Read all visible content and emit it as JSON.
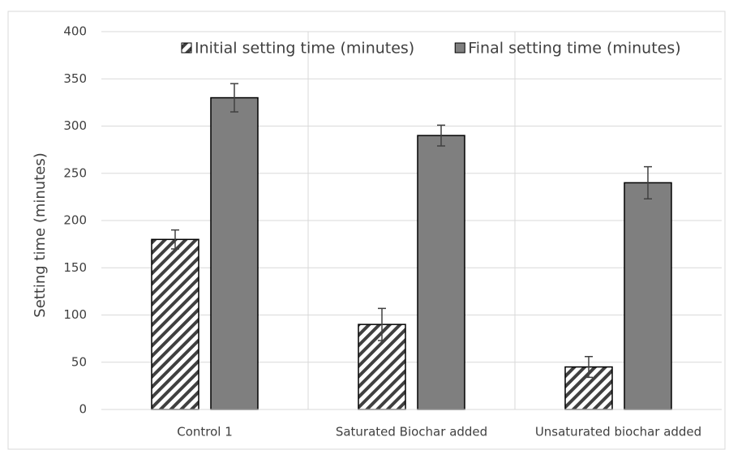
{
  "chart_data": {
    "type": "bar",
    "y_label": "Setting time (minutes)",
    "categories": [
      "Control 1",
      "Saturated Biochar added",
      "Unsaturated biochar added"
    ],
    "series": [
      {
        "name": "Initial setting time (minutes)",
        "color": "#404040",
        "pattern": "hatch",
        "values": [
          180,
          90,
          45
        ],
        "errors": [
          10,
          17,
          11
        ]
      },
      {
        "name": "Final setting time (minutes)",
        "color": "#7f7f7f",
        "values": [
          330,
          290,
          240
        ],
        "errors": [
          15,
          11,
          17
        ]
      }
    ],
    "ylim": [
      0,
      400
    ],
    "yticks": [
      0,
      50,
      100,
      150,
      200,
      250,
      300,
      350,
      400
    ],
    "grid": true,
    "legend": "top"
  }
}
